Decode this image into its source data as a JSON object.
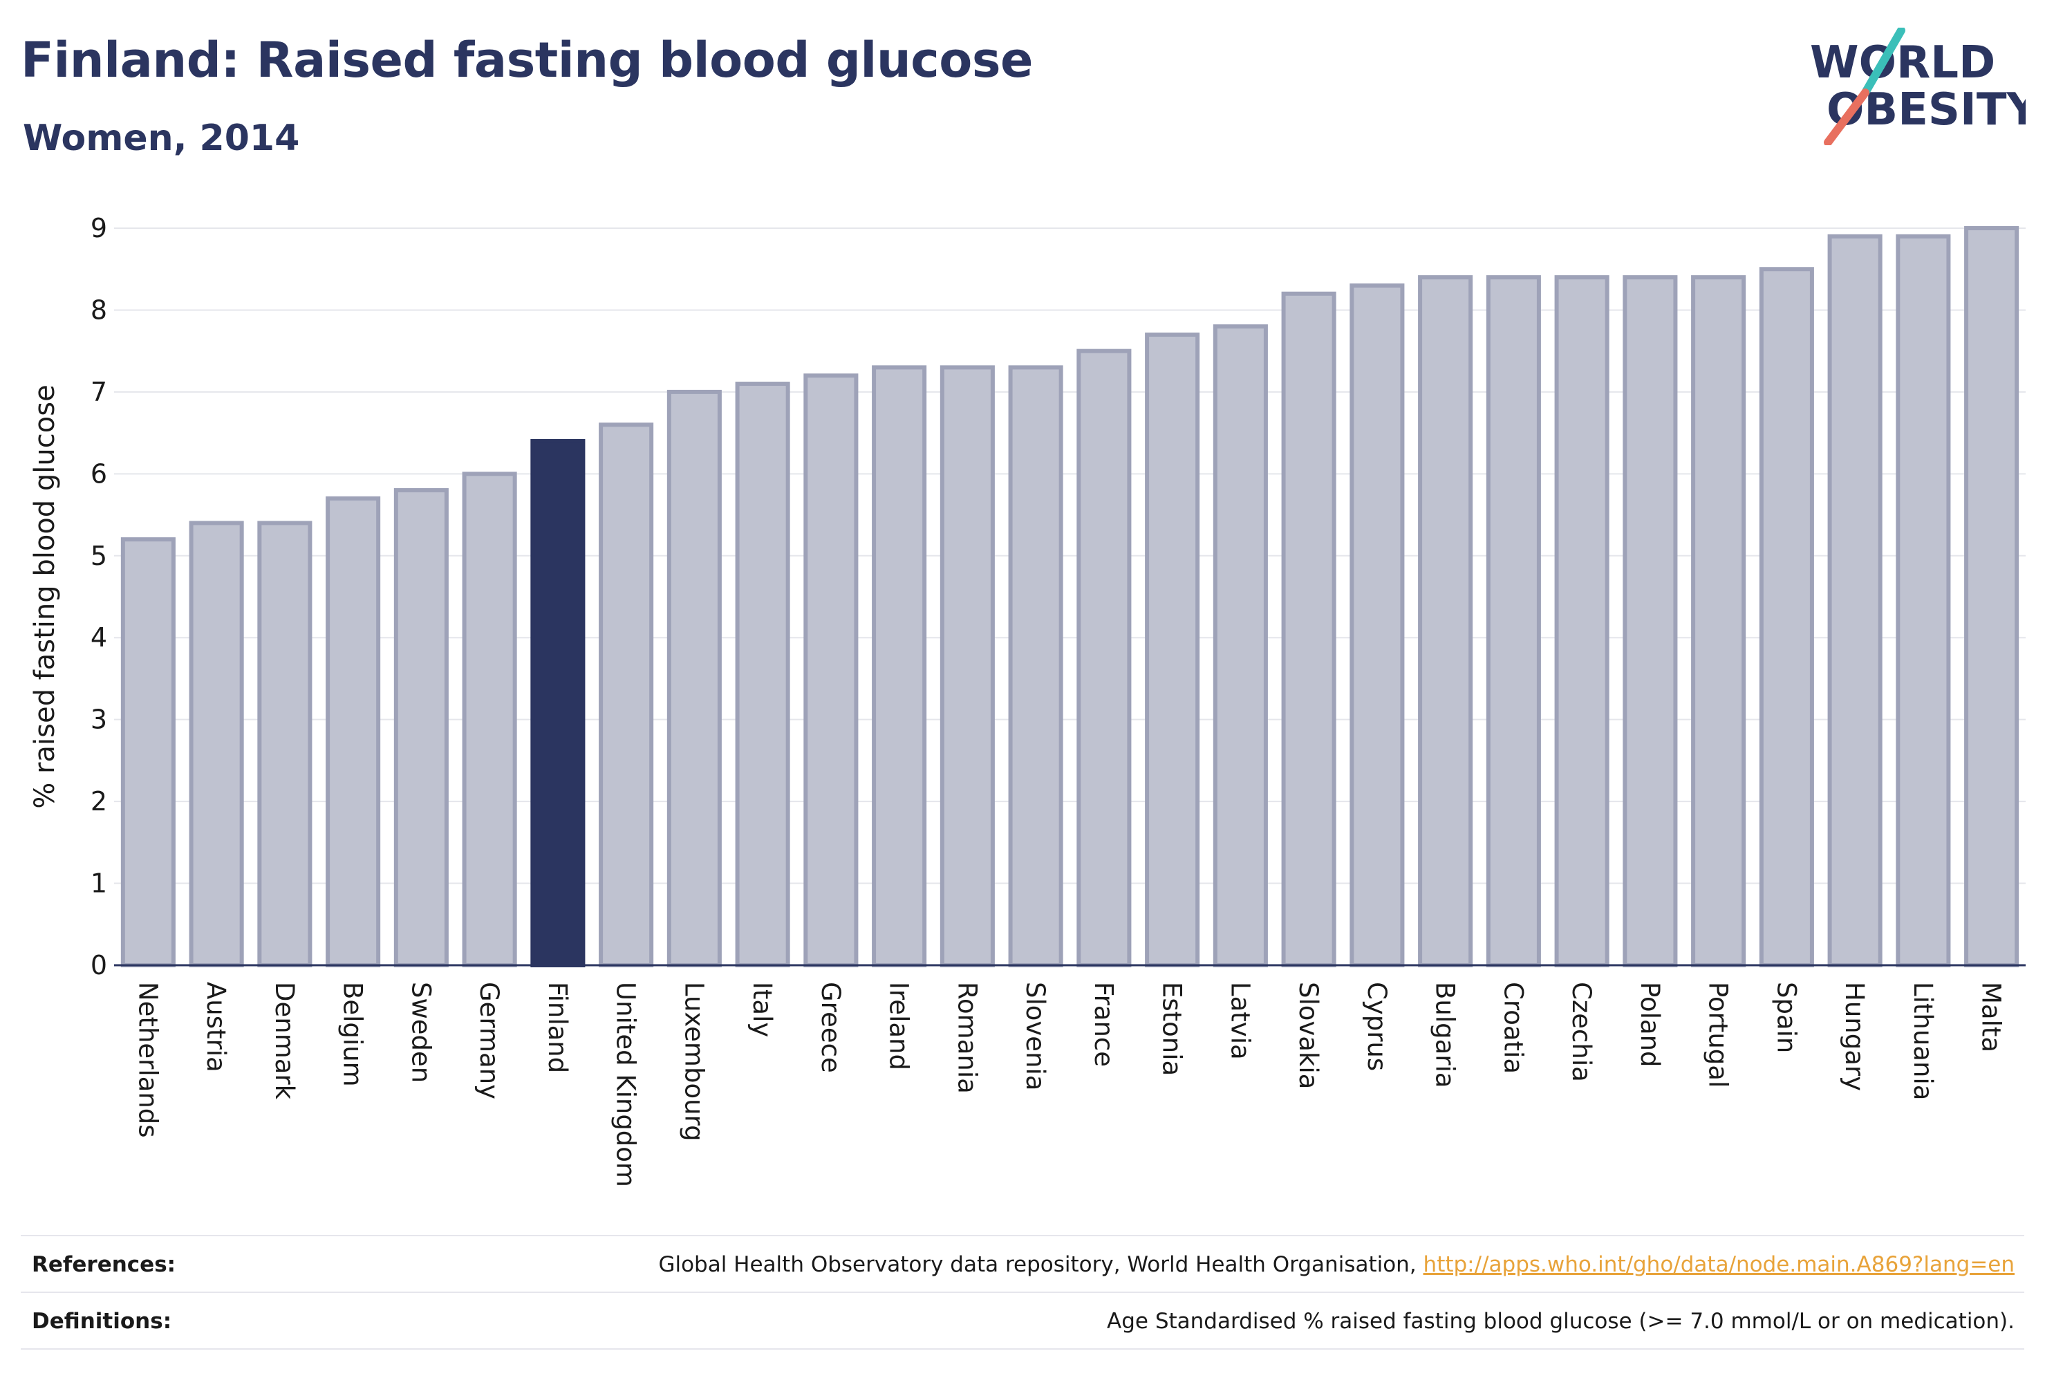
{
  "header": {
    "title": "Finland: Raised fasting blood glucose",
    "subtitle": "Women, 2014"
  },
  "logo": {
    "text_line1": "WORLD",
    "text_line2": "OBESITY",
    "color_text": "#2b3560",
    "color_slash_top": "#3bbfb9",
    "color_slash_bottom": "#e8705f"
  },
  "chart_data": {
    "type": "bar",
    "categories": [
      "Netherlands",
      "Austria",
      "Denmark",
      "Belgium",
      "Sweden",
      "Germany",
      "Finland",
      "United Kingdom",
      "Luxembourg",
      "Italy",
      "Greece",
      "Ireland",
      "Romania",
      "Slovenia",
      "France",
      "Estonia",
      "Latvia",
      "Slovakia",
      "Cyprus",
      "Bulgaria",
      "Croatia",
      "Czechia",
      "Poland",
      "Portugal",
      "Spain",
      "Hungary",
      "Lithuania",
      "Malta"
    ],
    "values": [
      5.2,
      5.4,
      5.4,
      5.7,
      5.8,
      6.0,
      6.4,
      6.6,
      7.0,
      7.1,
      7.2,
      7.3,
      7.3,
      7.3,
      7.5,
      7.7,
      7.8,
      8.2,
      8.3,
      8.4,
      8.4,
      8.4,
      8.4,
      8.4,
      8.5,
      8.9,
      8.9,
      9.0
    ],
    "highlight": "Finland",
    "ylabel": "% raised fasting blood glucose",
    "xlabel": "",
    "ylim": [
      0,
      9
    ],
    "yticks": [
      0,
      1,
      2,
      3,
      4,
      5,
      6,
      7,
      8,
      9
    ],
    "grid": true,
    "colors": {
      "bar_fill": "#bfc2d0",
      "bar_stroke": "#9ea2b8",
      "highlight_fill": "#2b3560",
      "grid": "#e5e6eb",
      "axis": "#2b3560"
    }
  },
  "footer": {
    "references_label": "References:",
    "references_text": "Global Health Observatory data repository, World Health Organisation, ",
    "references_link": "http://apps.who.int/gho/data/node.main.A869?lang=en",
    "definitions_label": "Definitions:",
    "definitions_text": "Age Standardised % raised fasting blood glucose (>= 7.0 mmol/L or on medication)."
  }
}
